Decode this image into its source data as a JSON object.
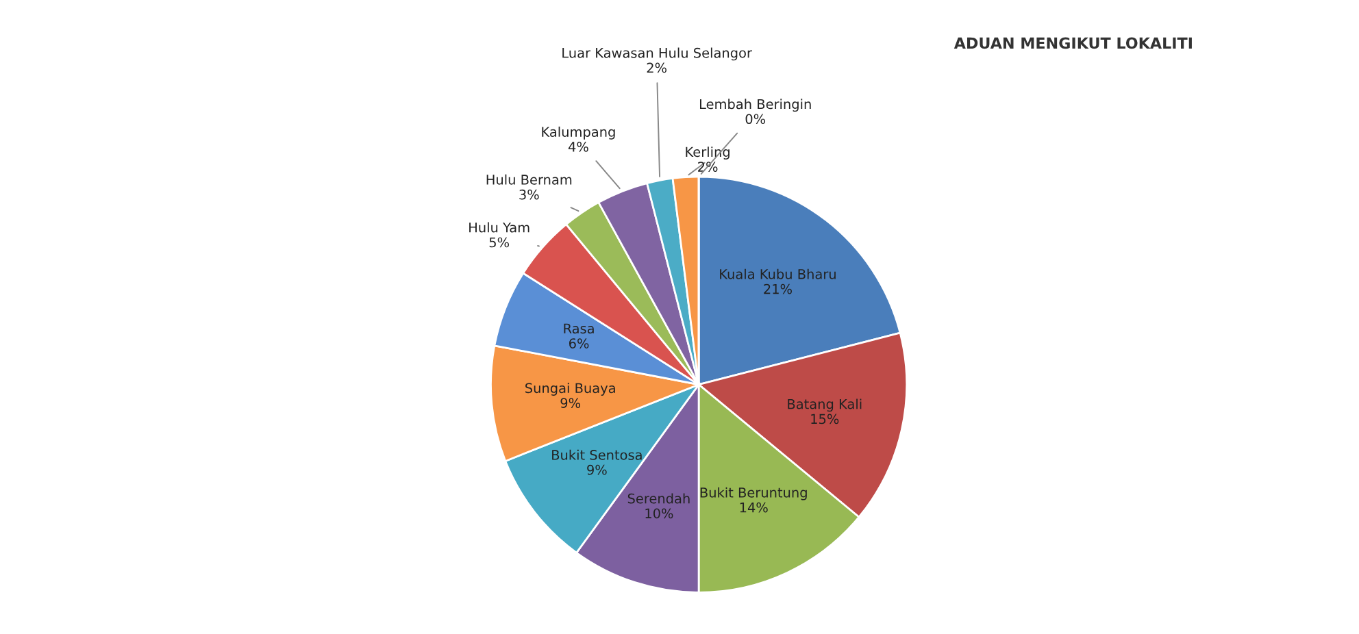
{
  "chart_data": {
    "type": "pie",
    "title": "ADUAN MENGIKUT LOKALITI",
    "categories": [
      "Kuala Kubu Bharu",
      "Batang Kali",
      "Bukit Beruntung",
      "Serendah",
      "Bukit Sentosa",
      "Sungai Buaya",
      "Rasa",
      "Hulu Yam",
      "Hulu Bernam",
      "Kalumpang",
      "Luar Kawasan Hulu Selangor",
      "Kerling",
      "Lembah Beringin"
    ],
    "values": [
      21,
      15,
      14,
      10,
      9,
      9,
      6,
      5,
      3,
      4,
      2,
      2,
      0
    ],
    "colors": [
      "#4a7ebb",
      "#be4b48",
      "#98b954",
      "#7d60a0",
      "#46aac5",
      "#f79646",
      "#5a8fd6",
      "#d9534f",
      "#9bbb59",
      "#8064a2",
      "#4bacc6",
      "#f79646",
      "#2c4d75"
    ],
    "data_labels": true,
    "value_labels": [
      "21%",
      "15%",
      "14%",
      "10%",
      "9%",
      "9%",
      "6%",
      "5%",
      "3%",
      "4%",
      "2%",
      "2%",
      "0%"
    ]
  }
}
